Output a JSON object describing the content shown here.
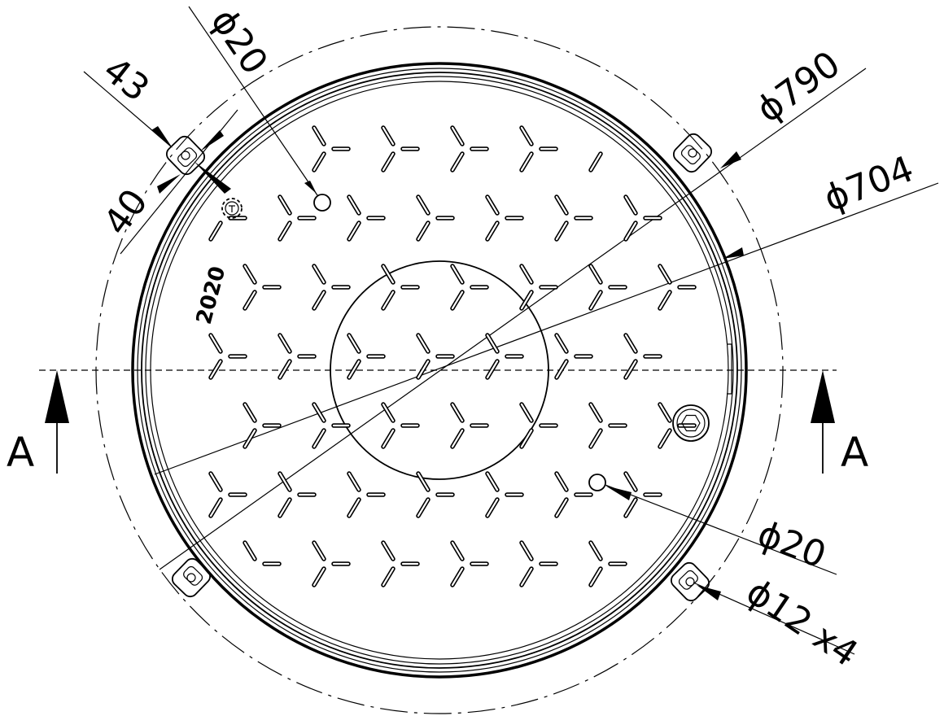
{
  "drawing": {
    "dimensions": {
      "frame_outer_diameter": "ϕ790",
      "cover_diameter": "ϕ704",
      "vent_hole_top": "ϕ20",
      "vent_hole_bottom": "ϕ20",
      "mounting_holes": "ϕ12 x4",
      "lug_width_outer": "43",
      "lug_width_inner": "40"
    },
    "section_marker_left": "A",
    "section_marker_right": "A",
    "year_marking": "2020",
    "colors": {
      "line": "#000000",
      "background": "#ffffff"
    },
    "icons": {
      "manufacturer_logo": "gear-logo-icon",
      "hex_plug": "hex-plug-icon",
      "section_arrow": "section-arrow-icon"
    }
  }
}
